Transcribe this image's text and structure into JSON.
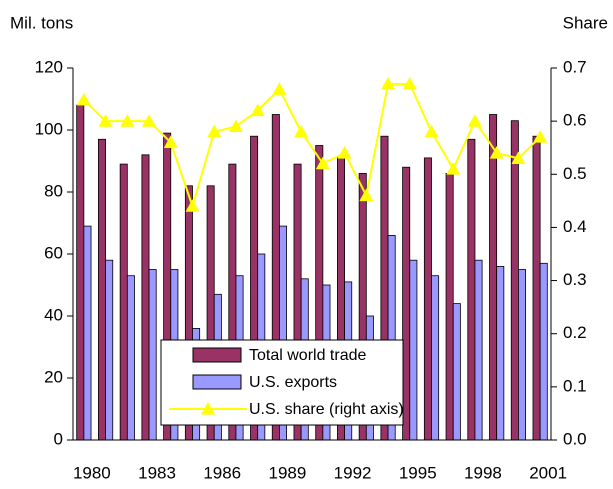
{
  "chart_data": {
    "type": "bar_line",
    "y_label": "Mil. tons",
    "y2_label": "Share",
    "categories": [
      "1980",
      null,
      null,
      "1983",
      null,
      null,
      "1986",
      null,
      null,
      "1989",
      null,
      null,
      "1992",
      null,
      null,
      "1995",
      null,
      null,
      "1998",
      null,
      null,
      "2001"
    ],
    "series": [
      {
        "name": "Total world trade",
        "color": "#993366",
        "type": "bar",
        "values": [
          108,
          97,
          89,
          92,
          99,
          82,
          82,
          89,
          98,
          105,
          89,
          95,
          91,
          86,
          98,
          88,
          91,
          86,
          97,
          105,
          103,
          98
        ]
      },
      {
        "name": "U.S. exports",
        "color": "#9999ff",
        "type": "bar",
        "values": [
          69,
          58,
          53,
          55,
          55,
          36,
          47,
          53,
          60,
          69,
          52,
          50,
          51,
          40,
          66,
          58,
          53,
          44,
          58,
          56,
          55,
          57
        ]
      },
      {
        "name": "U.S. share (right axis)",
        "color": "#ffff00",
        "type": "line",
        "axis": "y2",
        "values": [
          0.64,
          0.6,
          0.6,
          0.6,
          0.56,
          0.44,
          0.58,
          0.59,
          0.62,
          0.66,
          0.58,
          0.52,
          0.54,
          0.46,
          0.67,
          0.67,
          0.58,
          0.51,
          0.6,
          0.54,
          0.53,
          0.57
        ]
      }
    ],
    "ylim": [
      0,
      120
    ],
    "yticks": [
      0,
      20,
      40,
      60,
      80,
      100,
      120
    ],
    "y2lim": [
      0,
      0.7
    ],
    "y2ticks": [
      {
        "value": 0,
        "label": "0.0"
      },
      0.1,
      0.2,
      0.3,
      0.4,
      0.5,
      0.6,
      0.7
    ],
    "legend": "lower center"
  }
}
